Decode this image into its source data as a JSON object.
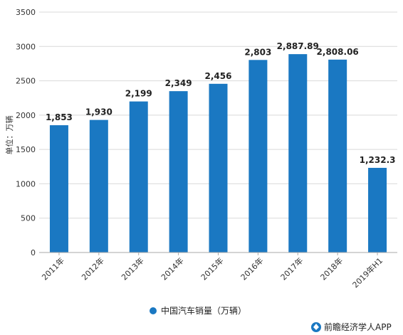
{
  "chart_data": {
    "type": "bar",
    "title": "",
    "xlabel": "",
    "ylabel": "单位：万辆",
    "categories": [
      "2011年",
      "2012年",
      "2013年",
      "2014年",
      "2015年",
      "2016年",
      "2017年",
      "2018年",
      "2019年H1"
    ],
    "series": [
      {
        "name": "中国汽车销量（万辆）",
        "values": [
          1853,
          1930,
          2199,
          2349,
          2456,
          2803,
          2887.89,
          2808.06,
          1232.3
        ],
        "labels": [
          "1,853",
          "1,930",
          "2,199",
          "2,349",
          "2,456",
          "2,803",
          "2,887.89",
          "2,808.06",
          "1,232.3"
        ],
        "color": "#1a78c2"
      }
    ],
    "ylim": [
      0,
      3500
    ],
    "yticks": [
      0,
      500,
      1000,
      1500,
      2000,
      2500,
      3000,
      3500
    ],
    "grid": true,
    "legend": "bottom-center"
  },
  "footer": {
    "brand": "前瞻经济学人APP"
  },
  "colors": {
    "bar": "#1a78c2",
    "grid": "#d9d9d9",
    "axis": "#aaaaaa"
  }
}
